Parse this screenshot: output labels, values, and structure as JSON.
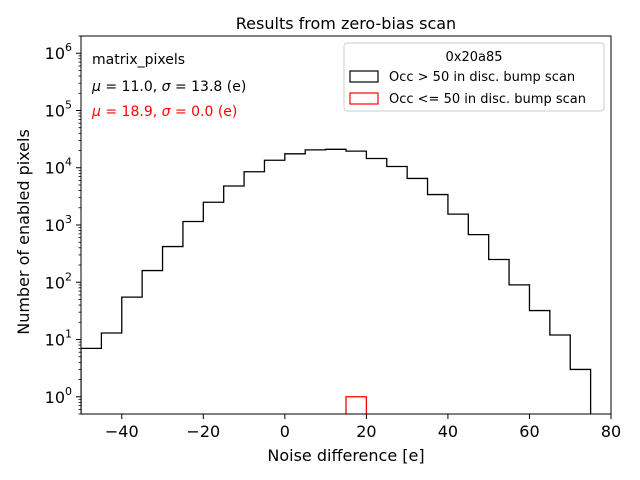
{
  "chart_data": {
    "type": "histogram",
    "title": "Results from zero-bias scan",
    "xlabel": "Noise difference [e]",
    "ylabel": "Number of enabled pixels",
    "xlim": [
      -50,
      80
    ],
    "ylim": [
      0.5,
      2000000
    ],
    "yscale": "log",
    "grid": false,
    "x_ticks": [
      -40,
      -20,
      0,
      20,
      40,
      60,
      80
    ],
    "x_tick_labels": [
      "−40",
      "−20",
      "0",
      "20",
      "40",
      "60",
      "80"
    ],
    "y_ticks": [
      1,
      10,
      100,
      1000,
      10000,
      100000,
      1000000
    ],
    "y_tick_labels": [
      {
        "base": "10",
        "exp": "0"
      },
      {
        "base": "10",
        "exp": "1"
      },
      {
        "base": "10",
        "exp": "2"
      },
      {
        "base": "10",
        "exp": "3"
      },
      {
        "base": "10",
        "exp": "4"
      },
      {
        "base": "10",
        "exp": "5"
      },
      {
        "base": "10",
        "exp": "6"
      }
    ],
    "bin_edges": [
      -50,
      -45,
      -40,
      -35,
      -30,
      -25,
      -20,
      -15,
      -10,
      -5,
      0,
      5,
      10,
      15,
      20,
      25,
      30,
      35,
      40,
      45,
      50,
      55,
      60,
      65,
      70,
      75
    ],
    "legend": {
      "title": "0x20a85",
      "placement": "top-right"
    },
    "annotations": {
      "label": "matrix_pixels",
      "lines": [
        {
          "mu": "11.0",
          "sigma": "13.8",
          "unit": "(e)",
          "color": "#000000"
        },
        {
          "mu": "18.9",
          "sigma": "0.0",
          "unit": "(e)",
          "color": "#ff0000"
        }
      ]
    },
    "series": [
      {
        "name": "Occ > 50 in disc. bump scan",
        "color": "#000000",
        "values": [
          7,
          13,
          55,
          160,
          420,
          1150,
          2500,
          4800,
          8500,
          13500,
          17500,
          20500,
          21000,
          19500,
          14500,
          10500,
          6500,
          3400,
          1550,
          680,
          250,
          90,
          32,
          12,
          3
        ]
      },
      {
        "name": "Occ <= 50 in disc. bump scan",
        "color": "#ff0000",
        "values": [
          0,
          0,
          0,
          0,
          0,
          0,
          0,
          0,
          0,
          0,
          0,
          0,
          0,
          1,
          0,
          0,
          0,
          0,
          0,
          0,
          0,
          0,
          0,
          0,
          0
        ]
      }
    ]
  }
}
